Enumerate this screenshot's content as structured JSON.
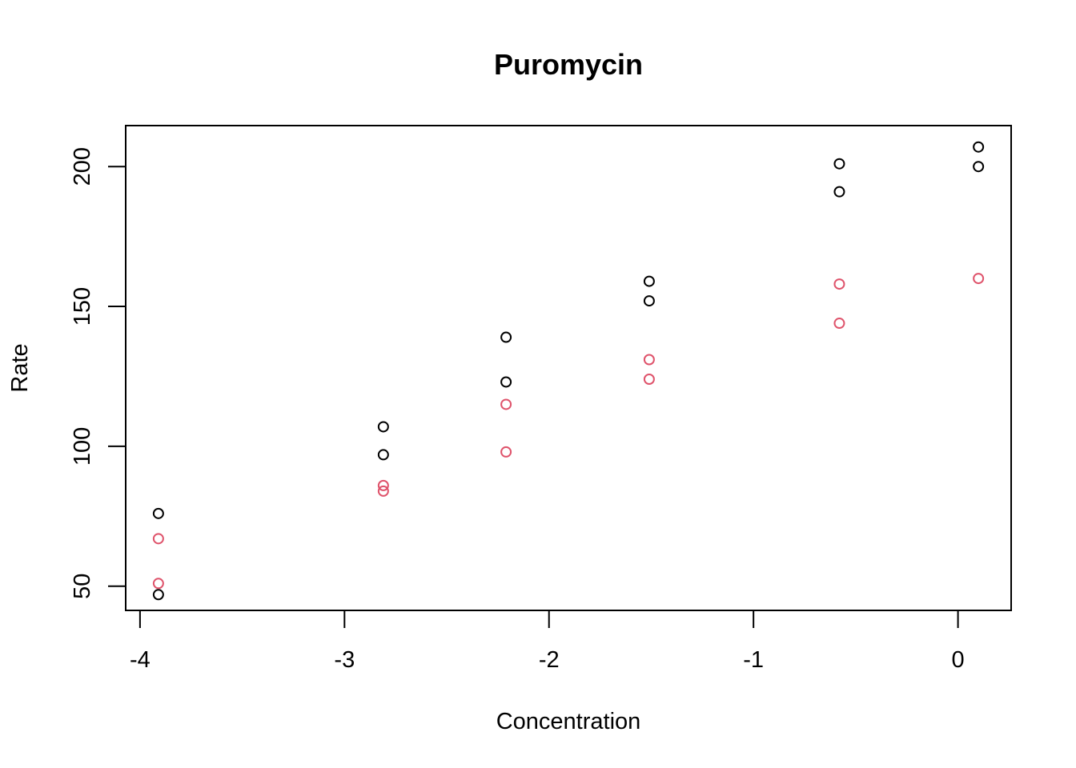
{
  "chart_data": {
    "type": "scatter",
    "title": "Puromycin",
    "xlabel": "Concentration",
    "ylabel": "Rate",
    "xlim": [
      -4.07,
      0.26
    ],
    "ylim": [
      41.36,
      214.64
    ],
    "x_ticks": [
      -4,
      -3,
      -2,
      -1,
      0
    ],
    "x_tick_labels": [
      "-4",
      "-3",
      "-2",
      "-1",
      "0"
    ],
    "y_ticks": [
      50,
      100,
      150,
      200
    ],
    "y_tick_labels": [
      "50",
      "100",
      "150",
      "200"
    ],
    "grid": false,
    "legend": "none",
    "series": [
      {
        "color": "#000000",
        "points": [
          {
            "x": -3.91,
            "y": 76
          },
          {
            "x": -3.91,
            "y": 47
          },
          {
            "x": -2.81,
            "y": 97
          },
          {
            "x": -2.81,
            "y": 107
          },
          {
            "x": -2.21,
            "y": 123
          },
          {
            "x": -2.21,
            "y": 139
          },
          {
            "x": -1.51,
            "y": 159
          },
          {
            "x": -1.51,
            "y": 152
          },
          {
            "x": -0.58,
            "y": 191
          },
          {
            "x": -0.58,
            "y": 201
          },
          {
            "x": 0.1,
            "y": 207
          },
          {
            "x": 0.1,
            "y": 200
          }
        ]
      },
      {
        "color": "#DF536B",
        "points": [
          {
            "x": -3.91,
            "y": 67
          },
          {
            "x": -3.91,
            "y": 51
          },
          {
            "x": -2.81,
            "y": 84
          },
          {
            "x": -2.81,
            "y": 86
          },
          {
            "x": -2.21,
            "y": 98
          },
          {
            "x": -2.21,
            "y": 115
          },
          {
            "x": -1.51,
            "y": 131
          },
          {
            "x": -1.51,
            "y": 124
          },
          {
            "x": -0.58,
            "y": 144
          },
          {
            "x": -0.58,
            "y": 158
          },
          {
            "x": 0.1,
            "y": 160
          }
        ]
      }
    ]
  }
}
